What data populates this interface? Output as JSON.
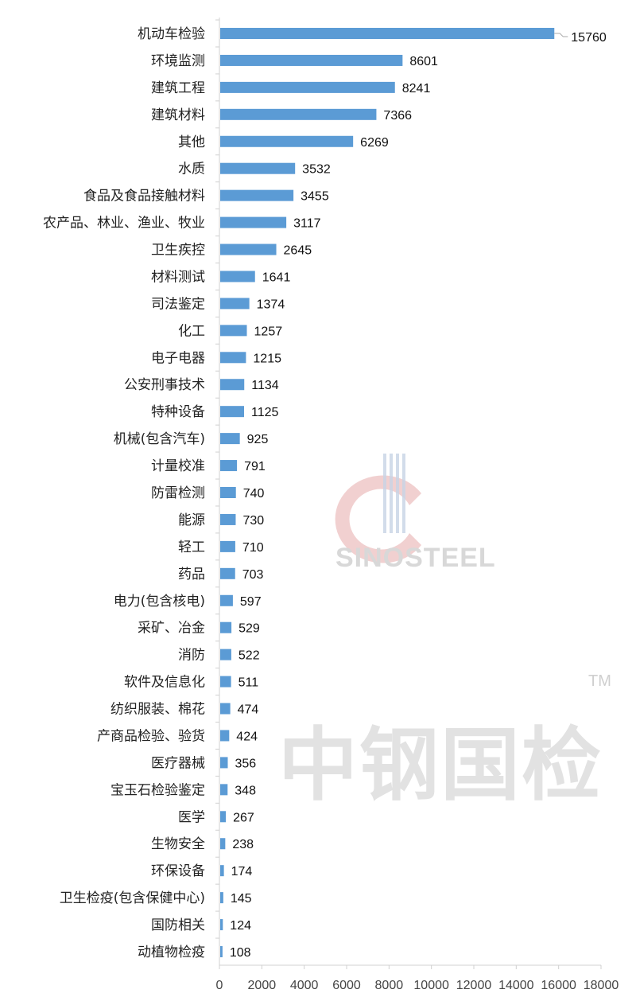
{
  "chart_data": {
    "type": "bar",
    "orientation": "horizontal",
    "categories": [
      "机动车检验",
      "环境监测",
      "建筑工程",
      "建筑材料",
      "其他",
      "水质",
      "食品及食品接触材料",
      "农产品、林业、渔业、牧业",
      "卫生疾控",
      "材料测试",
      "司法鉴定",
      "化工",
      "电子电器",
      "公安刑事技术",
      "特种设备",
      "机械(包含汽车)",
      "计量校准",
      "防雷检测",
      "能源",
      "轻工",
      "药品",
      "电力(包含核电)",
      "采矿、冶金",
      "消防",
      "软件及信息化",
      "纺织服装、棉花",
      "产商品检验、验货",
      "医疗器械",
      "宝玉石检验鉴定",
      "医学",
      "生物安全",
      "环保设备",
      "卫生检疫(包含保健中心)",
      "国防相关",
      "动植物检疫"
    ],
    "values": [
      15760,
      8601,
      8241,
      7366,
      6269,
      3532,
      3455,
      3117,
      2645,
      1641,
      1374,
      1257,
      1215,
      1134,
      1125,
      925,
      791,
      740,
      730,
      710,
      703,
      597,
      529,
      522,
      511,
      474,
      424,
      356,
      348,
      267,
      238,
      174,
      145,
      124,
      108
    ],
    "xlim": [
      0,
      18000
    ],
    "xticks": [
      "0",
      "2000",
      "4000",
      "6000",
      "8000",
      "10000",
      "12000",
      "14000",
      "16000",
      "18000"
    ],
    "title": "",
    "xlabel": "",
    "ylabel": "",
    "grid": false,
    "legend": "none",
    "data_labels": true,
    "bar_color": "#5B9BD5"
  },
  "watermark": {
    "logo_text": "SINOSTEEL",
    "brand_text": "中钢国检",
    "trademark": "TM"
  }
}
